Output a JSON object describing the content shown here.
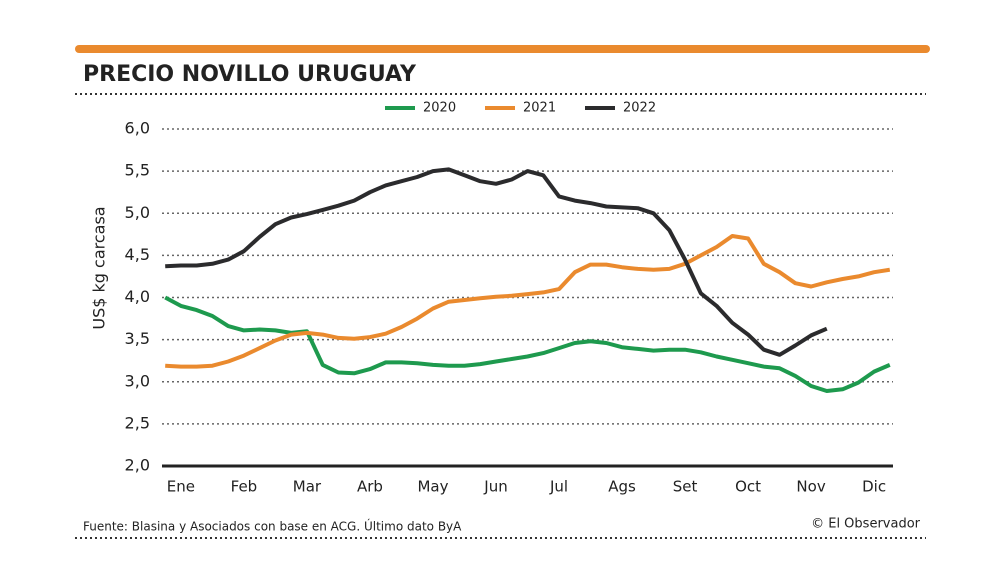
{
  "chart_data": {
    "type": "line",
    "title": "PRECIO NOVILLO URUGUAY",
    "y_label": "US$ kg carcasa",
    "source": "Fuente: Blasina y Asociados con base en  ACG. Último dato ByA",
    "credit": "© El Observador",
    "x": [
      -0.25,
      0,
      0.25,
      0.5,
      0.75,
      1,
      1.25,
      1.5,
      1.75,
      2,
      2.25,
      2.5,
      2.75,
      3,
      3.25,
      3.5,
      3.75,
      4,
      4.25,
      4.5,
      4.75,
      5,
      5.25,
      5.5,
      5.75,
      6,
      6.25,
      6.5,
      6.75,
      7,
      7.25,
      7.5,
      7.75,
      8,
      8.25,
      8.5,
      8.75,
      9,
      9.25,
      9.5,
      9.75,
      10,
      10.25,
      10.5,
      10.75,
      11,
      11.25
    ],
    "xlim": [
      -0.3,
      11.3
    ],
    "xticks": [
      {
        "value": 0,
        "label": "Ene"
      },
      {
        "value": 1,
        "label": "Feb"
      },
      {
        "value": 2,
        "label": "Mar"
      },
      {
        "value": 3,
        "label": "Arb"
      },
      {
        "value": 4,
        "label": "May"
      },
      {
        "value": 5,
        "label": "Jun"
      },
      {
        "value": 6,
        "label": "Jul"
      },
      {
        "value": 7,
        "label": "Ags"
      },
      {
        "value": 8,
        "label": "Set"
      },
      {
        "value": 9,
        "label": "Oct"
      },
      {
        "value": 10,
        "label": "Nov"
      },
      {
        "value": 11,
        "label": "Dic"
      }
    ],
    "ylim": [
      2,
      6
    ],
    "yticks": [
      {
        "value": 2,
        "label": "2,0"
      },
      {
        "value": 2.5,
        "label": "2,5"
      },
      {
        "value": 3,
        "label": "3,0"
      },
      {
        "value": 3.5,
        "label": "3,5"
      },
      {
        "value": 4,
        "label": "4,0"
      },
      {
        "value": 4.5,
        "label": "4,5"
      },
      {
        "value": 5,
        "label": "5,0"
      },
      {
        "value": 5.5,
        "label": "5,5"
      },
      {
        "value": 6,
        "label": "6,0"
      }
    ],
    "grid": true,
    "series": [
      {
        "name": "2020",
        "color": "#1e9a4e",
        "values": [
          4.0,
          3.9,
          3.85,
          3.78,
          3.66,
          3.61,
          3.62,
          3.61,
          3.58,
          3.6,
          3.2,
          3.11,
          3.1,
          3.15,
          3.23,
          3.23,
          3.22,
          3.2,
          3.19,
          3.19,
          3.21,
          3.24,
          3.27,
          3.3,
          3.34,
          3.4,
          3.46,
          3.48,
          3.46,
          3.41,
          3.39,
          3.37,
          3.38,
          3.38,
          3.35,
          3.3,
          3.26,
          3.22,
          3.18,
          3.16,
          3.07,
          2.95,
          2.89,
          2.91,
          2.99,
          3.12,
          3.2
        ]
      },
      {
        "name": "2021",
        "color": "#ea8a2e",
        "values": [
          3.19,
          3.18,
          3.18,
          3.19,
          3.24,
          3.31,
          3.4,
          3.49,
          3.56,
          3.58,
          3.56,
          3.52,
          3.51,
          3.53,
          3.57,
          3.65,
          3.75,
          3.87,
          3.95,
          3.97,
          3.99,
          4.01,
          4.02,
          4.04,
          4.06,
          4.1,
          4.3,
          4.39,
          4.39,
          4.36,
          4.34,
          4.33,
          4.34,
          4.4,
          4.5,
          4.6,
          4.73,
          4.7,
          4.4,
          4.3,
          4.17,
          4.13,
          4.18,
          4.22,
          4.25,
          4.3,
          4.33
        ]
      },
      {
        "name": "2022",
        "color": "#2b2b2d",
        "values": [
          4.37,
          4.38,
          4.38,
          4.4,
          4.45,
          4.55,
          4.72,
          4.87,
          4.95,
          4.99,
          5.04,
          5.09,
          5.15,
          5.25,
          5.33,
          5.38,
          5.43,
          5.5,
          5.52,
          5.45,
          5.38,
          5.35,
          5.4,
          5.5,
          5.45,
          5.2,
          5.15,
          5.12,
          5.08,
          5.07,
          5.06,
          5.0,
          4.8,
          4.45,
          4.05,
          3.9,
          3.7,
          3.56,
          3.38,
          3.32,
          3.43,
          3.55,
          3.63,
          null,
          null,
          null,
          null
        ]
      }
    ]
  }
}
